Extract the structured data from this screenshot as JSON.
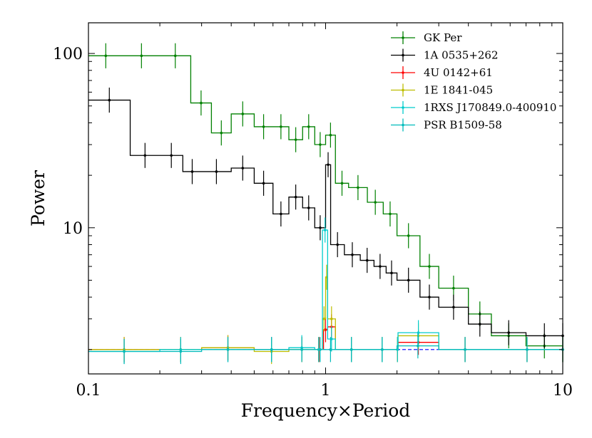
{
  "chart_data": {
    "type": "line",
    "xlabel": "Frequency×Period",
    "ylabel": "Power",
    "xscale": "log",
    "yscale": "log",
    "xlim": [
      0.1,
      10
    ],
    "ylim": [
      1.45,
      150
    ],
    "x_ticks": [
      {
        "value": 0.1,
        "label": "0.1"
      },
      {
        "value": 1,
        "label": "1"
      },
      {
        "value": 10,
        "label": "10"
      }
    ],
    "y_ticks": [
      {
        "value": 10,
        "label": "10"
      },
      {
        "value": 100,
        "label": "100"
      }
    ],
    "legend_position": "top-right",
    "baseline": {
      "value": 2.0,
      "color": "#0000ff",
      "style": "dashed"
    },
    "series": [
      {
        "name": "GK Per",
        "color": "#008000",
        "x": [
          0.1,
          0.14,
          0.2,
          0.27,
          0.33,
          0.4,
          0.5,
          0.6,
          0.7,
          0.8,
          0.9,
          1.0,
          1.1,
          1.25,
          1.5,
          1.75,
          2.0,
          2.5,
          3.0,
          4.0,
          5.0,
          7.0,
          10.0
        ],
        "y": [
          97,
          97,
          97,
          52,
          35,
          45,
          38,
          38,
          32,
          38,
          30,
          34,
          18,
          17,
          14,
          12,
          9,
          6,
          4.5,
          3.2,
          2.4,
          2.1,
          2.0
        ]
      },
      {
        "name": "1A 0535+262",
        "color": "#000000",
        "x": [
          0.1,
          0.15,
          0.2,
          0.25,
          0.3,
          0.4,
          0.5,
          0.6,
          0.7,
          0.8,
          0.9,
          1.0,
          1.05,
          1.2,
          1.4,
          1.6,
          1.8,
          2.0,
          2.5,
          3.0,
          4.0,
          5.0,
          7.0,
          10.0
        ],
        "y": [
          54,
          26,
          26,
          21,
          21,
          22,
          18,
          12,
          15,
          13,
          10,
          23,
          8,
          7,
          6.5,
          6,
          5.5,
          5,
          4,
          3.5,
          2.8,
          2.5,
          2.4,
          2.4
        ]
      },
      {
        "name": "4U 0142+61",
        "color": "#ff0000",
        "x": [
          0.1,
          0.2,
          0.3,
          0.5,
          0.7,
          0.9,
          0.98,
          1.02,
          1.1,
          1.5,
          2.0,
          2.02,
          3.0,
          5.0,
          10.0
        ],
        "y": [
          2.0,
          2.0,
          2.05,
          2.0,
          2.0,
          2.0,
          2.6,
          2.7,
          2.0,
          2.0,
          2.0,
          2.2,
          2.0,
          2.0,
          2.0
        ]
      },
      {
        "name": "1E 1841-045",
        "color": "#bdbd00",
        "x": [
          0.1,
          0.2,
          0.3,
          0.5,
          0.7,
          0.9,
          0.97,
          1.0,
          1.02,
          1.1,
          1.5,
          2.0,
          2.02,
          3.0,
          5.0,
          10.0
        ],
        "y": [
          2.0,
          2.0,
          2.05,
          1.95,
          2.0,
          2.0,
          3.0,
          5.2,
          3.0,
          2.0,
          2.0,
          2.0,
          2.4,
          2.0,
          2.0,
          2.0
        ]
      },
      {
        "name": "1RXS J170849.0-400910",
        "color": "#00cccc",
        "x": [
          0.1,
          0.2,
          0.3,
          0.5,
          0.7,
          0.9,
          0.97,
          1.02,
          1.1,
          1.5,
          2.0,
          2.02,
          3.0,
          5.0,
          10.0
        ],
        "y": [
          1.95,
          2.0,
          2.0,
          2.0,
          2.05,
          2.0,
          9.7,
          2.3,
          2.0,
          2.0,
          2.0,
          2.5,
          2.0,
          2.0,
          2.0
        ]
      },
      {
        "name": "PSR B1509-58",
        "color": "#00bbbb",
        "x": [
          0.1,
          0.2,
          0.3,
          0.5,
          0.7,
          0.9,
          1.0,
          1.1,
          1.5,
          2.0,
          3.0,
          5.0,
          10.0
        ],
        "y": [
          1.95,
          1.95,
          2.0,
          2.0,
          2.0,
          2.0,
          2.0,
          2.0,
          2.0,
          2.1,
          2.0,
          2.0,
          2.0
        ]
      }
    ]
  }
}
